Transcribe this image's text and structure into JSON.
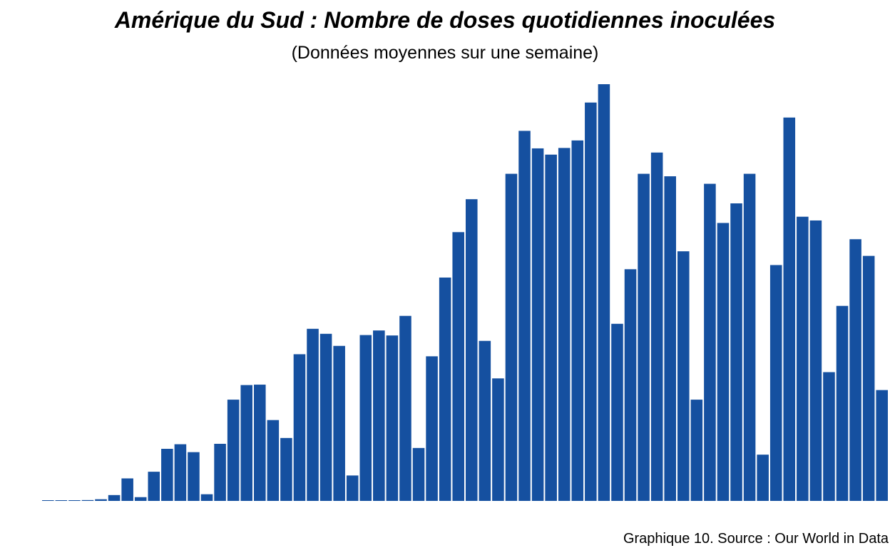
{
  "chart_data": {
    "type": "bar",
    "title": "Amérique du Sud : Nombre de doses quotidiennes inoculées",
    "subtitle": "(Données moyennes sur une semaine)",
    "caption": "Graphique 10. Source : Our World in Data",
    "bar_color": "#1550A0",
    "axes_visible": false,
    "grid": false,
    "ylim": [
      0,
      100
    ],
    "values": [
      0.1,
      0.1,
      0.1,
      0.2,
      0.4,
      1.4,
      5.4,
      0.9,
      7.0,
      12.5,
      13.6,
      11.7,
      1.6,
      13.7,
      24.3,
      27.8,
      27.9,
      19.4,
      15.1,
      35.2,
      41.3,
      40.1,
      37.2,
      6.1,
      39.8,
      40.9,
      39.7,
      44.4,
      12.7,
      34.7,
      53.6,
      64.5,
      72.4,
      38.4,
      29.4,
      78.5,
      88.8,
      84.6,
      83.1,
      84.7,
      86.5,
      95.6,
      100.0,
      42.5,
      55.6,
      78.5,
      83.6,
      77.9,
      59.9,
      24.3,
      76.1,
      66.7,
      71.4,
      78.5,
      11.1,
      56.6,
      92.0,
      68.2,
      67.3,
      30.9,
      46.8,
      62.8,
      58.8,
      26.6
    ]
  }
}
